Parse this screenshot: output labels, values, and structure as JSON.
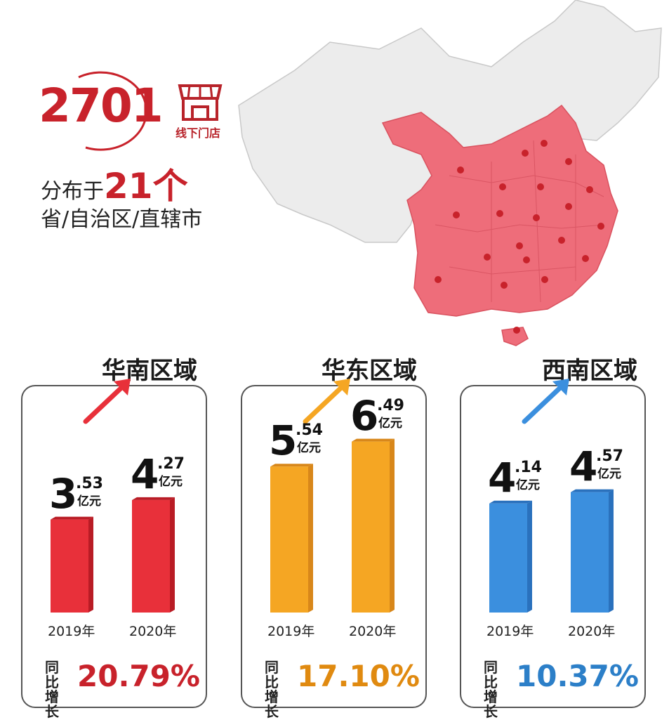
{
  "stores": {
    "count": "2701",
    "label": "线下门店"
  },
  "distribution": {
    "prefix": "分布于",
    "count": "21个",
    "line2": "省/自治区/直辖市"
  },
  "colors": {
    "south": "#e8303a",
    "east": "#f5a623",
    "west": "#3b8fde",
    "map_highlight": "#ee6d7a",
    "map_base": "#ededed"
  },
  "chart_data": [
    {
      "type": "bar",
      "title": "华南区域",
      "categories": [
        "2019年",
        "2020年"
      ],
      "values": [
        3.53,
        4.27
      ],
      "value_labels": [
        {
          "int": "3",
          "dec": ".53",
          "unit": "亿元"
        },
        {
          "int": "4",
          "dec": ".27",
          "unit": "亿元"
        }
      ],
      "growth": {
        "label": "同比增长",
        "value": "20.79%"
      }
    },
    {
      "type": "bar",
      "title": "华东区域",
      "categories": [
        "2019年",
        "2020年"
      ],
      "values": [
        5.54,
        6.49
      ],
      "value_labels": [
        {
          "int": "5",
          "dec": ".54",
          "unit": "亿元"
        },
        {
          "int": "6",
          "dec": ".49",
          "unit": "亿元"
        }
      ],
      "growth": {
        "label": "同比增长",
        "value": "17.10%"
      }
    },
    {
      "type": "bar",
      "title": "西南区域",
      "categories": [
        "2019年",
        "2020年"
      ],
      "values": [
        4.14,
        4.57
      ],
      "value_labels": [
        {
          "int": "4",
          "dec": ".14",
          "unit": "亿元"
        },
        {
          "int": "4",
          "dec": ".57",
          "unit": "亿元"
        }
      ],
      "growth": {
        "label": "同比增长",
        "value": "10.37%"
      }
    }
  ]
}
